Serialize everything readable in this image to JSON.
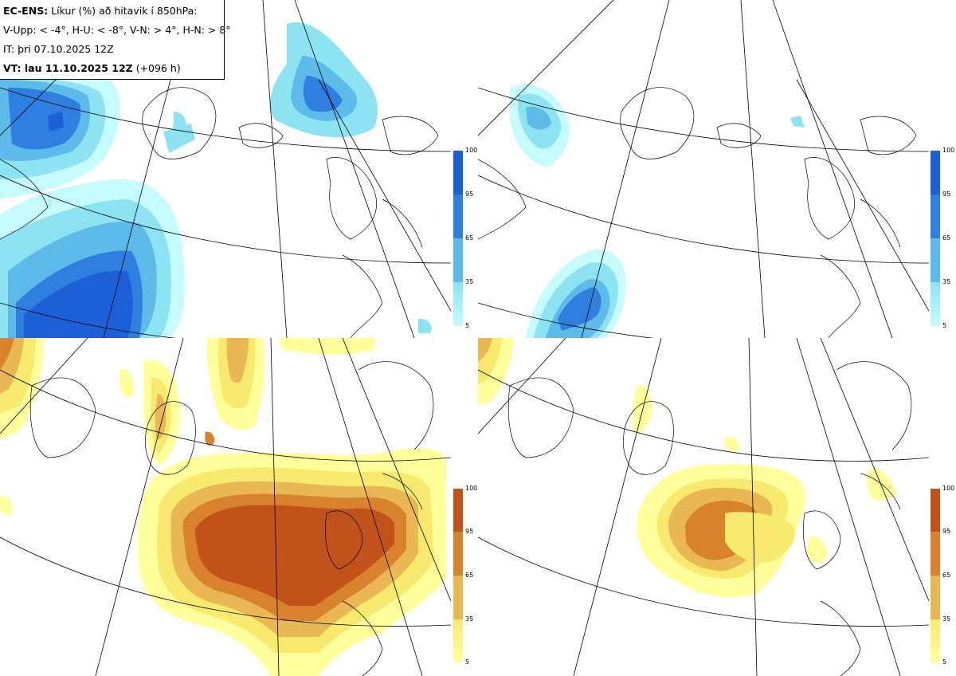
{
  "info": {
    "model_label": "EC-ENS:",
    "title_rest": " Líkur (%) að hitavik í 850hPa:",
    "thresholds": "V-Upp: < -4°, H-U: < -8°, V-N: > 4°, H-N: > 8°",
    "init_time": "IT: þri 07.10.2025 12Z",
    "valid_label": "VT: lau 11.10.2025 12Z",
    "valid_lead": " (+096 h)"
  },
  "colorbars": {
    "cold": {
      "ticks": [
        "100",
        "95",
        "65",
        "35",
        "5"
      ],
      "colors": [
        "#1c5fd6",
        "#2f7fe0",
        "#5cbbe8",
        "#8ee3f2",
        "#c6fbff"
      ]
    },
    "warm": {
      "ticks": [
        "100",
        "95",
        "65",
        "35",
        "5"
      ],
      "colors": [
        "#c0521a",
        "#d8822e",
        "#e9b754",
        "#f7ea6e",
        "#ffff9c"
      ]
    }
  },
  "panels": [
    {
      "name": "V-Upp",
      "variable": "cold anomaly < -4°"
    },
    {
      "name": "H-U",
      "variable": "cold anomaly < -8°"
    },
    {
      "name": "V-N",
      "variable": "warm anomaly > 4°"
    },
    {
      "name": "H-N",
      "variable": "warm anomaly > 8°"
    }
  ]
}
